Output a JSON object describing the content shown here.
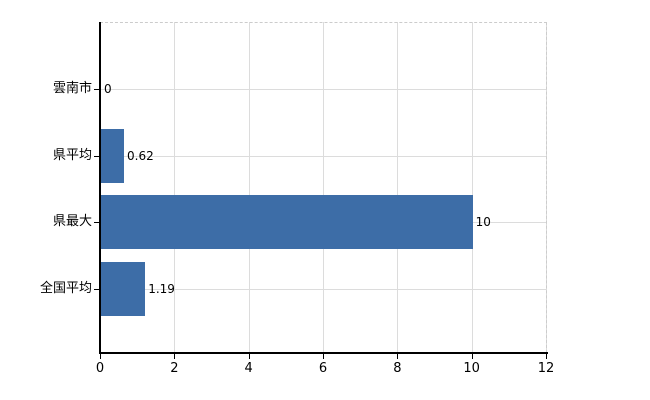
{
  "chart_data": {
    "type": "bar",
    "orientation": "horizontal",
    "title": "",
    "categories": [
      "雲南市",
      "県平均",
      "県最大",
      "全国平均"
    ],
    "values": [
      0,
      0.62,
      10,
      1.19
    ],
    "value_labels": [
      "0",
      "0.62",
      "10",
      "1.19"
    ],
    "x_ticks": [
      0,
      2,
      4,
      6,
      8,
      10,
      12
    ],
    "x_tick_labels": [
      "0",
      "2",
      "4",
      "6",
      "8",
      "10",
      "12"
    ],
    "xlim": [
      0,
      12
    ],
    "grid": true,
    "legend_position": "none",
    "colors": {
      "bar": "#3d6da7",
      "axis": "#000000",
      "gridline": "#dcdcdc",
      "plot_border": "#cccccc",
      "text": "#000000",
      "background": "#ffffff"
    }
  }
}
